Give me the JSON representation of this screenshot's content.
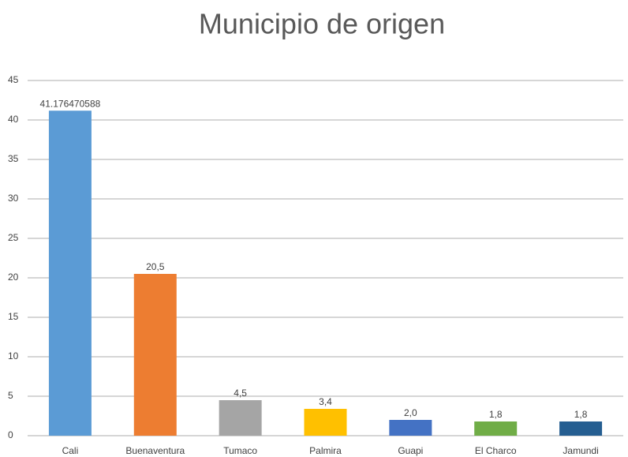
{
  "chart_data": {
    "type": "bar",
    "title": "Municipio de origen",
    "categories": [
      "Cali",
      "Buenaventura",
      "Tumaco",
      "Palmira",
      "Guapi",
      "El Charco",
      "Jamundi"
    ],
    "values": [
      41.176470588,
      20.5,
      4.5,
      3.4,
      2.0,
      1.8,
      1.8
    ],
    "value_labels": [
      "41.176470588",
      "20,5",
      "4,5",
      "3,4",
      "2,0",
      "1,8",
      "1,8"
    ],
    "colors": [
      "#5b9bd5",
      "#ed7d31",
      "#a5a5a5",
      "#ffc000",
      "#4472c4",
      "#70ad47",
      "#255e91"
    ],
    "ylim": [
      0,
      45
    ],
    "yticks": [
      0,
      5,
      10,
      15,
      20,
      25,
      30,
      35,
      40,
      45
    ],
    "grid": true
  }
}
